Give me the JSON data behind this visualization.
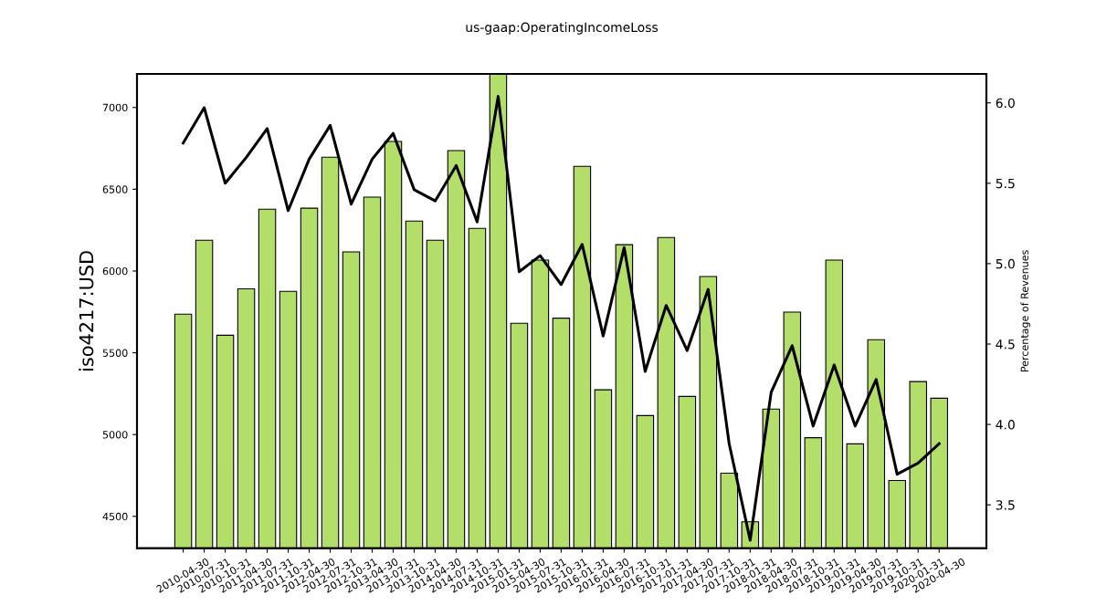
{
  "chart_data": {
    "type": "bar",
    "title": "us-gaap:OperatingIncomeLoss",
    "ylabel": "iso4217:USD",
    "y2label": "Percentage of Revenues",
    "categories": [
      "2010-04-30",
      "2010-07-31",
      "2010-10-31",
      "2011-04-30",
      "2011-07-31",
      "2011-10-31",
      "2012-04-30",
      "2012-07-31",
      "2012-10-31",
      "2013-04-30",
      "2013-07-31",
      "2013-10-31",
      "2014-04-30",
      "2014-07-31",
      "2014-10-31",
      "2015-01-31",
      "2015-04-30",
      "2015-07-31",
      "2015-10-31",
      "2016-01-31",
      "2016-04-30",
      "2016-07-31",
      "2016-10-31",
      "2017-01-31",
      "2017-04-30",
      "2017-07-31",
      "2017-10-31",
      "2018-01-31",
      "2018-04-30",
      "2018-07-31",
      "2018-10-31",
      "2019-01-31",
      "2019-04-30",
      "2019-07-31",
      "2019-10-31",
      "2020-01-31",
      "2020-04-30"
    ],
    "series": [
      {
        "color": "#b3de69",
        "values": [
          5736,
          6188,
          5607,
          5891,
          6378,
          5876,
          6384,
          6696,
          6117,
          6452,
          6792,
          6305,
          6188,
          6736,
          6261,
          7205,
          5680,
          6067,
          5712,
          6640,
          5274,
          6161,
          5116,
          6205,
          5233,
          5966,
          4764,
          4467,
          5156,
          5749,
          4981,
          6067,
          4943,
          5580,
          4719,
          5324,
          5222
        ]
      },
      {
        "type": "line",
        "axis": "y2",
        "color": "#000000",
        "values": [
          5.75,
          5.97,
          5.5,
          5.66,
          5.84,
          5.33,
          5.65,
          5.86,
          5.37,
          5.65,
          5.81,
          5.46,
          5.39,
          5.61,
          5.26,
          6.04,
          4.95,
          5.05,
          4.87,
          5.12,
          4.55,
          5.1,
          4.33,
          4.74,
          4.46,
          4.84,
          3.88,
          3.28,
          4.2,
          4.49,
          3.99,
          4.37,
          3.99,
          4.28,
          3.69,
          3.76,
          3.88
        ]
      }
    ],
    "ylim": [
      4305,
      7205
    ],
    "yticks": [
      4500,
      5000,
      5500,
      6000,
      6500,
      7000
    ],
    "y2lim": [
      3.23,
      6.18
    ],
    "y2ticks": [
      3.5,
      {
        "value": 4,
        "label": "4.0"
      },
      4.5,
      {
        "value": 5,
        "label": "5.0"
      },
      5.5,
      {
        "value": 6,
        "label": "6.0"
      }
    ]
  }
}
